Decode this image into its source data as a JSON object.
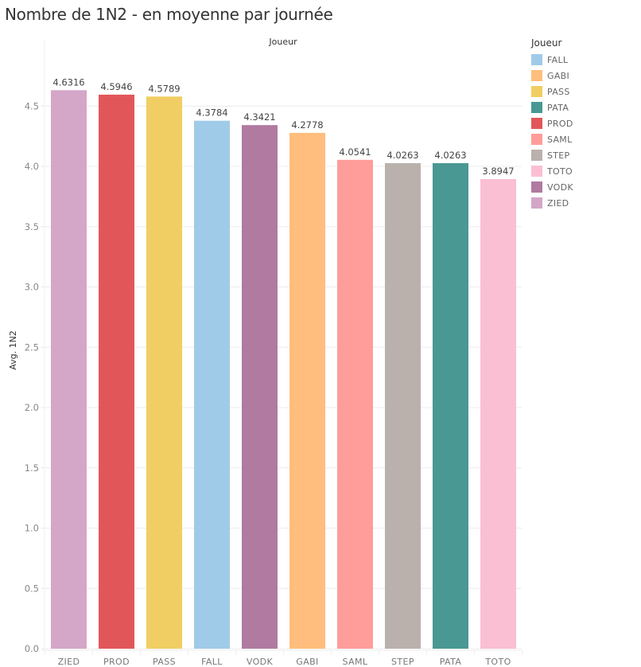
{
  "title": "Nombre de 1N2 - en moyenne par journée",
  "column_header": "Joueur",
  "legend": {
    "title": "Joueur",
    "items": [
      {
        "label": "FALL",
        "color": "#a0cbe8"
      },
      {
        "label": "GABI",
        "color": "#ffbe7d"
      },
      {
        "label": "PASS",
        "color": "#f1ce63"
      },
      {
        "label": "PATA",
        "color": "#499894"
      },
      {
        "label": "PROD",
        "color": "#e15759"
      },
      {
        "label": "SAML",
        "color": "#ff9d9a"
      },
      {
        "label": "STEP",
        "color": "#bab0ac"
      },
      {
        "label": "TOTO",
        "color": "#fabfd2"
      },
      {
        "label": "VODK",
        "color": "#b07aa1"
      },
      {
        "label": "ZIED",
        "color": "#d4a6c8"
      }
    ]
  },
  "chart_data": {
    "type": "bar",
    "title": "Nombre de 1N2 - en moyenne par journée",
    "xlabel": "Joueur",
    "ylabel": "Avg. 1N2",
    "ylim": [
      0,
      4.75
    ],
    "yticks": [
      "0.0",
      "0.5",
      "1.0",
      "1.5",
      "2.0",
      "2.5",
      "3.0",
      "3.5",
      "4.0",
      "4.5"
    ],
    "ytick_values": [
      0,
      0.5,
      1.0,
      1.5,
      2.0,
      2.5,
      3.0,
      3.5,
      4.0,
      4.5
    ],
    "grid": true,
    "legend_position": "right",
    "categories": [
      "ZIED",
      "PROD",
      "PASS",
      "FALL",
      "VODK",
      "GABI",
      "SAML",
      "STEP",
      "PATA",
      "TOTO"
    ],
    "values": [
      4.6316,
      4.5946,
      4.5789,
      4.3784,
      4.3421,
      4.2778,
      4.0541,
      4.0263,
      4.0263,
      3.8947
    ],
    "labels": [
      "4.6316",
      "4.5946",
      "4.5789",
      "4.3784",
      "4.3421",
      "4.2778",
      "4.0541",
      "4.0263",
      "4.0263",
      "3.8947"
    ],
    "colors": [
      "#d4a6c8",
      "#e15759",
      "#f1ce63",
      "#a0cbe8",
      "#b07aa1",
      "#ffbe7d",
      "#ff9d9a",
      "#bab0ac",
      "#499894",
      "#fabfd2"
    ]
  }
}
